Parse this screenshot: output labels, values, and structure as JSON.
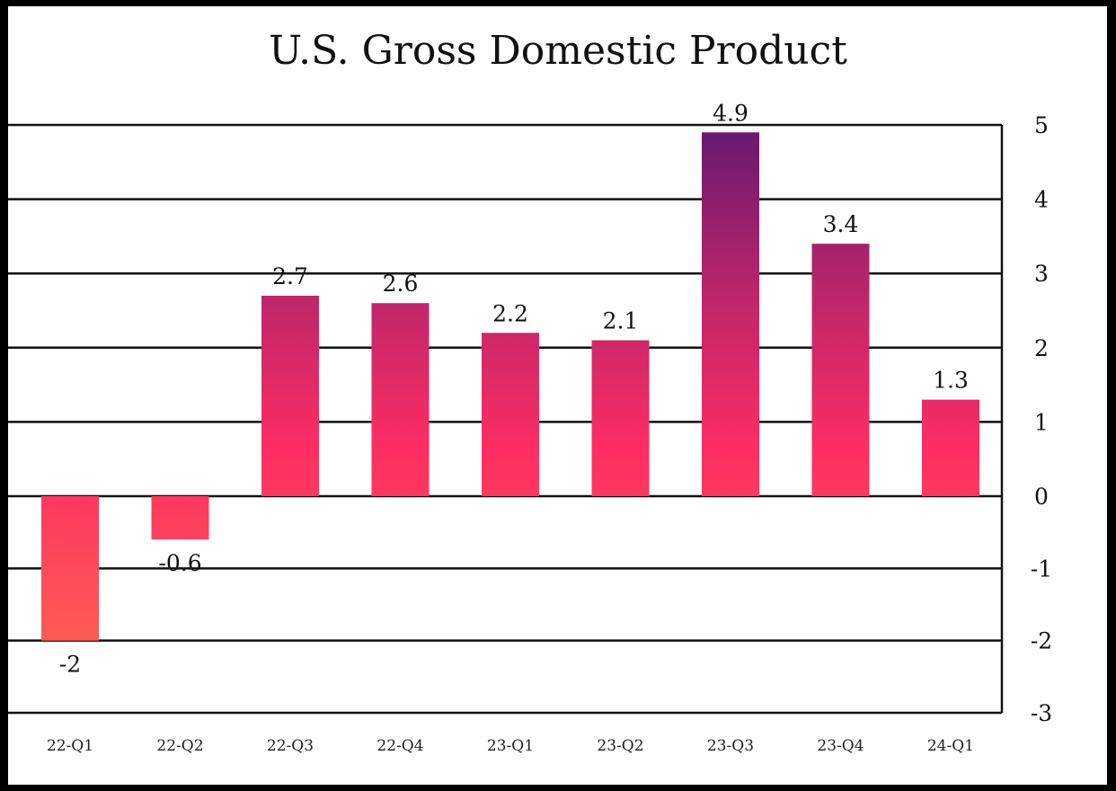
{
  "chart_data": {
    "type": "bar",
    "title": "U.S. Gross Domestic Product",
    "xlabel": "",
    "ylabel": "",
    "categories": [
      "22-Q1",
      "22-Q2",
      "22-Q3",
      "22-Q4",
      "23-Q1",
      "23-Q2",
      "23-Q3",
      "23-Q4",
      "24-Q1"
    ],
    "values": [
      -2,
      -0.6,
      2.7,
      2.6,
      2.2,
      2.1,
      4.9,
      3.4,
      1.3
    ],
    "data_labels": [
      "-2",
      "-0.6",
      "2.7",
      "2.6",
      "2.2",
      "2.1",
      "4.9",
      "3.4",
      "1.3"
    ],
    "yticks": [
      "-3",
      "-2",
      "-1",
      "0",
      "1",
      "2",
      "3",
      "4",
      "5"
    ],
    "ylim": [
      -3,
      5
    ],
    "grid": true,
    "y_axis_side": "right"
  },
  "colors": {
    "bar_top": "#6a1a6f",
    "bar_mid": "#c0266a",
    "bar_positive": "#fd2d63",
    "bar_negative": "#fe5a54",
    "gridline": "#111111",
    "frame": "#000000"
  }
}
